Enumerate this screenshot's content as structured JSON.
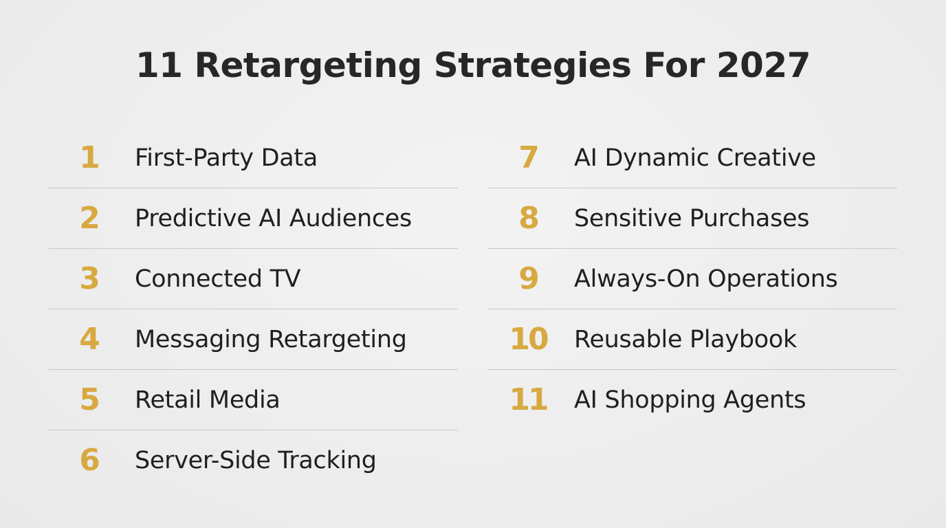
{
  "title": "11 Retargeting Strategies For 2027",
  "colors": {
    "accent_number": "#d8a941",
    "text": "#1f1f1f",
    "divider": "#c9c9c9",
    "background": "#eeeeee"
  },
  "left_items": [
    {
      "number": "1",
      "label": "First-Party Data"
    },
    {
      "number": "2",
      "label": "Predictive AI Audiences"
    },
    {
      "number": "3",
      "label": "Connected TV"
    },
    {
      "number": "4",
      "label": "Messaging Retargeting"
    },
    {
      "number": "5",
      "label": "Retail Media"
    },
    {
      "number": "6",
      "label": "Server-Side Tracking"
    }
  ],
  "right_items": [
    {
      "number": "7",
      "label": "AI Dynamic Creative"
    },
    {
      "number": "8",
      "label": "Sensitive Purchases"
    },
    {
      "number": "9",
      "label": "Always-On Operations"
    },
    {
      "number": "10",
      "label": "Reusable Playbook"
    },
    {
      "number": "11",
      "label": "AI Shopping Agents"
    }
  ]
}
